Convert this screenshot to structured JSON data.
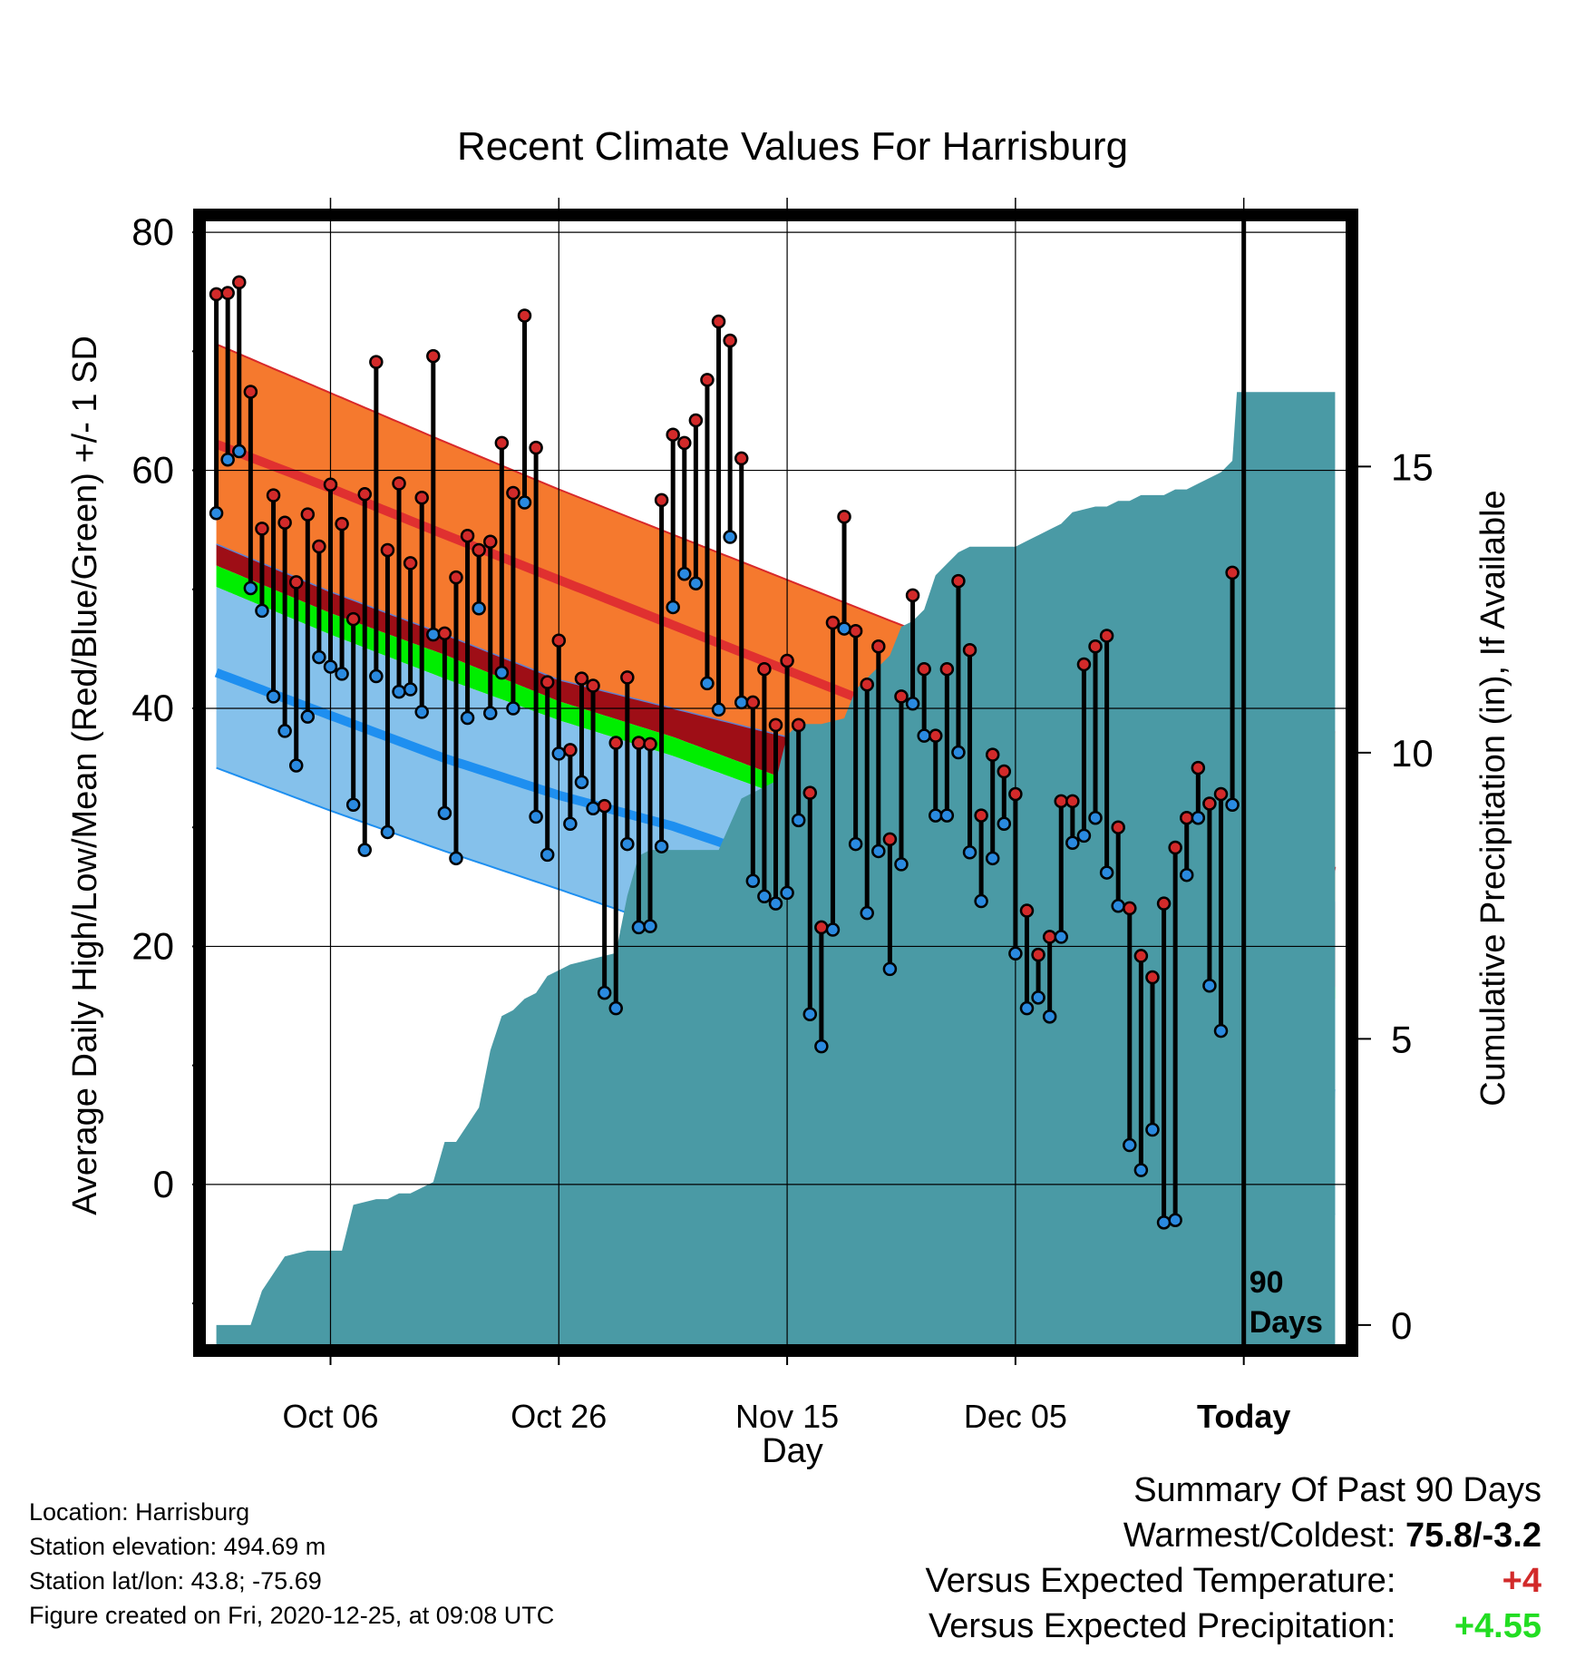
{
  "chart_data": {
    "type": "line",
    "title": "Recent Climate Values For Harrisburg",
    "xlabel": "Day",
    "ylabel": "Average Daily High/Low/Mean (Red/Blue/Green) +/- 1 SD",
    "y2label": "Cumulative Precipitation (in), If Available",
    "x_tick_labels": [
      "Oct 06",
      "Oct 26",
      "Nov 15",
      "Dec 05",
      "Today"
    ],
    "x_tick_days": [
      10,
      30,
      50,
      70,
      90
    ],
    "x_range": [
      -1,
      99
    ],
    "y_range": [
      -13.5,
      81
    ],
    "y_ticks": [
      0,
      20,
      40,
      60,
      80
    ],
    "y2_range": [
      -0.35,
      19.3
    ],
    "y2_ticks": [
      0,
      5,
      10,
      15
    ],
    "today_label": "90 Days",
    "colors": {
      "high_band": "#f5792e",
      "high_mean": "#e03030",
      "low_band": "#85c1eb",
      "low_mean": "#1e8ff0",
      "mean_band": "#00ee00",
      "overlap": "#9e0e16",
      "precip": "#4a9aa5",
      "obs_high": "#d22a2a",
      "obs_low": "#2a8ae0"
    },
    "normals": {
      "days": [
        0,
        10,
        20,
        30,
        40,
        50,
        60,
        70,
        80,
        90,
        98
      ],
      "high_plus": [
        70.6,
        66.5,
        62.4,
        58.4,
        54.6,
        50.8,
        47.0,
        43.4,
        40.3,
        38.8,
        38.0
      ],
      "high_mean": [
        62.2,
        58.5,
        54.6,
        50.8,
        47.0,
        43.2,
        39.4,
        35.2,
        30.2,
        27.7,
        26.3
      ],
      "high_minus": [
        53.8,
        49.8,
        46.2,
        42.4,
        40.0,
        37.6,
        35.0,
        31.4,
        28.1,
        25.6,
        23.7
      ],
      "mean_plus": [
        52.0,
        48.0,
        44.5,
        40.6,
        37.6,
        34.0,
        29.6,
        24.8,
        21.4,
        17.6,
        16.6
      ],
      "mean_minus": [
        50.2,
        46.2,
        42.5,
        39.0,
        36.0,
        32.5,
        28.2,
        23.0,
        19.4,
        16.2,
        15.6
      ],
      "low_mean": [
        43.0,
        39.4,
        35.8,
        32.7,
        30.1,
        26.8,
        22.2,
        16.2,
        11.2,
        8.0,
        7.6
      ],
      "low_minus": [
        35.0,
        31.4,
        28.0,
        24.8,
        21.5,
        17.5,
        11.5,
        5.8,
        1.2,
        -2.0,
        -2.5
      ]
    },
    "series": [
      {
        "name": "High",
        "values": [
          74.8,
          74.9,
          75.8,
          66.6,
          55.1,
          57.9,
          55.6,
          50.6,
          56.3,
          53.6,
          58.8,
          55.5,
          47.5,
          58.0,
          69.1,
          53.3,
          58.9,
          52.2,
          57.7,
          69.6,
          46.3,
          51.0,
          54.5,
          53.3,
          54.0,
          62.3,
          58.1,
          73.0,
          61.9,
          42.2,
          45.7,
          36.5,
          42.5,
          41.9,
          31.8,
          37.1,
          42.6,
          37.1,
          37.0,
          57.5,
          63.0,
          62.3,
          64.2,
          67.6,
          72.5,
          70.9,
          61.0,
          40.5,
          43.3,
          38.6,
          44.0,
          38.6,
          32.9,
          21.6,
          47.2,
          56.1,
          46.5,
          42.0,
          45.2,
          29.0,
          41.0,
          49.5,
          43.3,
          37.7,
          43.3,
          50.7,
          44.9,
          31.0,
          36.1,
          34.7,
          32.8,
          23.0,
          19.3,
          20.8,
          32.2,
          32.2,
          43.7,
          45.2,
          46.1,
          30.0,
          23.2,
          19.2,
          17.4,
          23.6,
          28.3,
          30.8,
          35.0,
          32.0,
          32.8,
          51.4
        ]
      },
      {
        "name": "Low",
        "values": [
          56.4,
          60.9,
          61.6,
          50.1,
          48.2,
          41.0,
          38.1,
          35.2,
          39.3,
          44.3,
          43.5,
          42.9,
          31.9,
          28.1,
          42.7,
          29.6,
          41.4,
          41.6,
          39.7,
          46.2,
          31.2,
          27.4,
          39.2,
          48.4,
          39.6,
          43.0,
          40.0,
          57.3,
          30.9,
          27.7,
          36.2,
          30.3,
          33.8,
          31.6,
          16.1,
          14.8,
          28.6,
          21.6,
          21.7,
          28.4,
          48.5,
          51.3,
          50.5,
          42.1,
          39.9,
          54.4,
          40.5,
          25.5,
          24.2,
          23.6,
          24.5,
          30.6,
          14.3,
          11.6,
          21.4,
          46.7,
          28.6,
          22.8,
          28.0,
          18.1,
          26.9,
          40.4,
          37.7,
          31.0,
          31.0,
          36.3,
          27.9,
          23.8,
          27.4,
          30.3,
          19.4,
          14.8,
          15.7,
          14.1,
          20.8,
          28.7,
          29.3,
          30.8,
          26.2,
          23.4,
          3.3,
          1.2,
          4.6,
          -3.2,
          -3.0,
          26.0,
          30.8,
          16.7,
          12.9,
          31.9
        ]
      },
      {
        "name": "Cumulative Precipitation",
        "days": [
          0,
          3,
          4,
          6,
          7,
          8,
          9,
          10,
          11,
          12,
          14,
          15,
          16,
          17,
          19,
          20,
          21,
          23,
          24,
          25,
          26,
          27,
          28,
          29,
          30,
          31,
          32,
          33,
          35,
          36,
          37,
          38,
          39,
          40,
          41,
          42,
          43,
          44,
          46,
          47,
          49,
          50,
          51,
          52,
          53,
          55,
          56,
          57,
          59,
          60,
          61,
          62,
          63,
          64,
          65,
          66,
          67,
          68,
          69,
          70,
          71,
          72,
          73,
          74,
          75,
          77,
          78,
          79,
          80,
          81,
          82,
          83,
          84,
          85,
          86,
          87,
          88,
          89,
          89.4,
          98
        ],
        "values": [
          0,
          0,
          0.6,
          1.2,
          1.25,
          1.3,
          1.3,
          1.3,
          1.3,
          2.1,
          2.2,
          2.2,
          2.3,
          2.3,
          2.5,
          3.2,
          3.2,
          3.8,
          4.8,
          5.4,
          5.5,
          5.7,
          5.8,
          6.1,
          6.2,
          6.3,
          6.35,
          6.4,
          6.5,
          7.5,
          8.2,
          8.3,
          8.3,
          8.3,
          8.3,
          8.3,
          8.3,
          8.3,
          9.2,
          9.3,
          9.5,
          10.3,
          10.5,
          10.5,
          10.5,
          10.6,
          11.1,
          11.3,
          11.7,
          12.2,
          12.3,
          12.5,
          13.1,
          13.3,
          13.5,
          13.6,
          13.6,
          13.6,
          13.6,
          13.6,
          13.7,
          13.8,
          13.9,
          14.0,
          14.2,
          14.3,
          14.3,
          14.4,
          14.4,
          14.5,
          14.5,
          14.5,
          14.6,
          14.6,
          14.7,
          14.8,
          14.9,
          15.1,
          16.3,
          16.3
        ]
      }
    ]
  },
  "footer": {
    "location": "Location: Harrisburg",
    "elevation": "Station elevation: 494.69 m",
    "latlon": "Station lat/lon: 43.8; -75.69",
    "created": "Figure created on Fri, 2020-12-25, at 09:08 UTC"
  },
  "summary": {
    "heading": "Summary Of Past 90 Days",
    "warm_cold_label": "Warmest/Coldest:",
    "warm_cold_value": "75.8/-3.2",
    "temp_label": "Versus Expected Temperature:",
    "temp_value": "+4",
    "temp_color": "#d22a2a",
    "precip_label": "Versus Expected Precipitation:",
    "precip_value": "+4.55",
    "precip_color": "#22dd22"
  }
}
